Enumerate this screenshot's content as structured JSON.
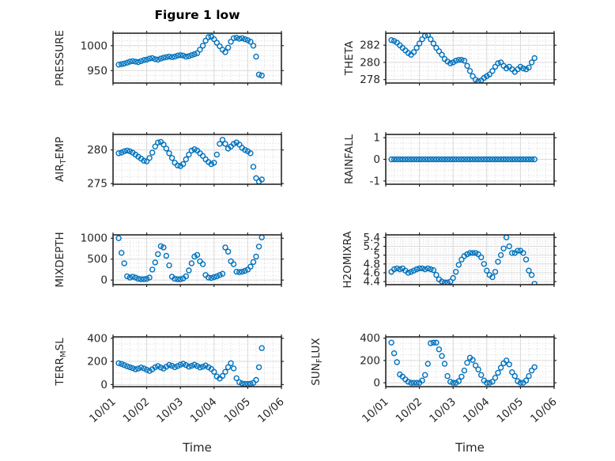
{
  "figure": {
    "title": "Figure 1 low",
    "xlabel": "Time",
    "marker_color": "#0072BD",
    "axis_color": "#262626",
    "grid_major_color": "#d9d9d9",
    "grid_minor_color": "#c9c9c9",
    "background": "#ffffff"
  },
  "chart_data": {
    "type": "scatter",
    "xlabel": "Time",
    "xlim_days": [
      0,
      5
    ],
    "xtick_labels": [
      "10/01",
      "10/02",
      "10/03",
      "10/04",
      "10/05",
      "10/06"
    ],
    "x_days": [
      0.167,
      0.25,
      0.333,
      0.417,
      0.5,
      0.583,
      0.667,
      0.75,
      0.833,
      0.917,
      1.0,
      1.083,
      1.167,
      1.25,
      1.333,
      1.417,
      1.5,
      1.583,
      1.667,
      1.75,
      1.833,
      1.917,
      2.0,
      2.083,
      2.167,
      2.25,
      2.333,
      2.417,
      2.5,
      2.583,
      2.667,
      2.75,
      2.833,
      2.917,
      3.0,
      3.083,
      3.167,
      3.25,
      3.333,
      3.417,
      3.5,
      3.583,
      3.667,
      3.75,
      3.833,
      3.917,
      4.0,
      4.083,
      4.167,
      4.25,
      4.333,
      4.417
    ],
    "subplots": [
      {
        "name": "PRESSURE",
        "row": 0,
        "col": 0,
        "ylabel_parts": [
          {
            "text": "PRESSURE"
          }
        ],
        "yticks": [
          950,
          1000
        ],
        "ytick_labels": [
          "950",
          "1000"
        ],
        "ylim": [
          925,
          1025
        ],
        "yminor": 10,
        "values": [
          962,
          963,
          964,
          966,
          968,
          969,
          968,
          967,
          969,
          971,
          972,
          974,
          975,
          973,
          972,
          974,
          976,
          977,
          978,
          977,
          978,
          980,
          981,
          980,
          978,
          979,
          981,
          983,
          985,
          992,
          1000,
          1010,
          1017,
          1018,
          1013,
          1006,
          999,
          992,
          987,
          996,
          1008,
          1015,
          1016,
          1014,
          1015,
          1013,
          1011,
          1008,
          1000,
          978,
          942,
          940
        ]
      },
      {
        "name": "THETA",
        "row": 0,
        "col": 1,
        "ylabel_parts": [
          {
            "text": "THETA"
          }
        ],
        "yticks": [
          278,
          280,
          282
        ],
        "ytick_labels": [
          "278",
          "280",
          "282"
        ],
        "ylim": [
          277.6,
          283.4
        ],
        "yminor": 0.5,
        "values": [
          282.6,
          282.5,
          282.3,
          282.0,
          281.7,
          281.4,
          281.1,
          280.9,
          281.2,
          281.7,
          282.2,
          282.7,
          283.1,
          283.2,
          282.7,
          282.2,
          281.7,
          281.3,
          280.9,
          280.4,
          280.1,
          279.9,
          280.0,
          280.2,
          280.3,
          280.3,
          280.2,
          279.6,
          279.0,
          278.4,
          278.0,
          277.8,
          277.9,
          278.2,
          278.4,
          278.6,
          279.0,
          279.5,
          279.9,
          280.0,
          279.6,
          279.3,
          279.5,
          279.2,
          278.9,
          279.2,
          279.5,
          279.3,
          279.2,
          279.4,
          280.0,
          280.5
        ]
      },
      {
        "name": "AIR_TEMP",
        "row": 1,
        "col": 0,
        "ylabel_parts": [
          {
            "text": "AIR"
          },
          {
            "text": "T",
            "sub": true
          },
          {
            "text": "EMP"
          }
        ],
        "yticks": [
          275,
          280
        ],
        "ytick_labels": [
          "275",
          "280"
        ],
        "ylim": [
          274.9,
          282.3
        ],
        "yminor": 1,
        "values": [
          279.5,
          279.6,
          279.8,
          279.9,
          279.8,
          279.6,
          279.3,
          279.0,
          278.7,
          278.4,
          278.3,
          278.8,
          279.6,
          280.5,
          281.1,
          281.2,
          280.8,
          280.2,
          279.5,
          278.8,
          278.1,
          277.7,
          277.6,
          277.9,
          278.6,
          279.3,
          279.9,
          280.1,
          279.9,
          279.5,
          279.1,
          278.6,
          278.2,
          277.9,
          278.1,
          279.3,
          280.9,
          281.5,
          280.9,
          280.2,
          280.5,
          280.9,
          281.1,
          280.8,
          280.3,
          280.0,
          279.8,
          279.5,
          277.5,
          275.8,
          275.3,
          275.6
        ]
      },
      {
        "name": "RAINFALL",
        "row": 1,
        "col": 1,
        "ylabel_parts": [
          {
            "text": "RAINFALL"
          }
        ],
        "yticks": [
          -1,
          0,
          1
        ],
        "ytick_labels": [
          "-1",
          "0",
          "1"
        ],
        "ylim": [
          -1.15,
          1.15
        ],
        "yminor": 0.25,
        "values": [
          0,
          0,
          0,
          0,
          0,
          0,
          0,
          0,
          0,
          0,
          0,
          0,
          0,
          0,
          0,
          0,
          0,
          0,
          0,
          0,
          0,
          0,
          0,
          0,
          0,
          0,
          0,
          0,
          0,
          0,
          0,
          0,
          0,
          0,
          0,
          0,
          0,
          0,
          0,
          0,
          0,
          0,
          0,
          0,
          0,
          0,
          0,
          0,
          0,
          0,
          0,
          0
        ]
      },
      {
        "name": "MIXDEPTH",
        "row": 2,
        "col": 0,
        "ylabel_parts": [
          {
            "text": "MIXDEPTH"
          }
        ],
        "yticks": [
          0,
          500,
          1000
        ],
        "ytick_labels": [
          "0",
          "500",
          "1000"
        ],
        "ylim": [
          -110,
          1080
        ],
        "yminor": 100,
        "values": [
          1000,
          650,
          400,
          90,
          60,
          80,
          60,
          30,
          20,
          20,
          30,
          60,
          250,
          420,
          620,
          810,
          780,
          580,
          350,
          80,
          30,
          20,
          20,
          40,
          90,
          230,
          400,
          560,
          600,
          450,
          380,
          120,
          60,
          50,
          70,
          90,
          120,
          150,
          780,
          680,
          450,
          380,
          200,
          190,
          200,
          220,
          250,
          320,
          430,
          560,
          800,
          1020
        ]
      },
      {
        "name": "H2OMIXRA",
        "row": 2,
        "col": 1,
        "ylabel_parts": [
          {
            "text": "H2OMIXRA"
          }
        ],
        "yticks": [
          4.4,
          4.6,
          4.8,
          5,
          5.2,
          5.4
        ],
        "ytick_labels": [
          "4.4",
          "4.6",
          "4.8",
          "5",
          "5.2",
          "5.4"
        ],
        "ylim": [
          4.33,
          5.46
        ],
        "yminor": 0.05,
        "values": [
          4.62,
          4.68,
          4.7,
          4.68,
          4.7,
          4.65,
          4.6,
          4.62,
          4.65,
          4.68,
          4.7,
          4.7,
          4.68,
          4.7,
          4.68,
          4.66,
          4.55,
          4.45,
          4.4,
          4.38,
          4.38,
          4.4,
          4.48,
          4.62,
          4.78,
          4.9,
          4.98,
          5.02,
          5.05,
          5.05,
          5.05,
          5.02,
          4.95,
          4.8,
          4.65,
          4.55,
          4.5,
          4.62,
          4.85,
          5.0,
          5.15,
          5.4,
          5.2,
          5.05,
          5.05,
          5.1,
          5.1,
          5.05,
          4.9,
          4.65,
          4.55,
          4.35
        ]
      },
      {
        "name": "TERR_MSL",
        "row": 3,
        "col": 0,
        "ylabel_parts": [
          {
            "text": "TERR"
          },
          {
            "text": "M",
            "sub": true
          },
          {
            "text": "SL"
          }
        ],
        "yticks": [
          0,
          200,
          400
        ],
        "ytick_labels": [
          "0",
          "200",
          "400"
        ],
        "ylim": [
          -18,
          412
        ],
        "yminor": 50,
        "values": [
          185,
          178,
          168,
          158,
          150,
          142,
          132,
          138,
          148,
          140,
          128,
          118,
          132,
          150,
          160,
          148,
          138,
          155,
          170,
          162,
          150,
          160,
          172,
          180,
          168,
          155,
          162,
          172,
          160,
          148,
          155,
          165,
          150,
          135,
          110,
          70,
          52,
          75,
          110,
          150,
          185,
          140,
          55,
          20,
          10,
          6,
          5,
          8,
          15,
          40,
          150,
          315
        ]
      },
      {
        "name": "SUN_FLUX",
        "row": 3,
        "col": 1,
        "ylabel_parts": [
          {
            "text": "SUN"
          },
          {
            "text": "F",
            "sub": true
          },
          {
            "text": "LUX"
          }
        ],
        "yticks": [
          0,
          200,
          400
        ],
        "ytick_labels": [
          "0",
          "200",
          "400"
        ],
        "ylim": [
          -35,
          412
        ],
        "yminor": 50,
        "values": [
          360,
          265,
          185,
          75,
          55,
          30,
          10,
          0,
          0,
          0,
          0,
          20,
          70,
          170,
          355,
          360,
          360,
          300,
          240,
          170,
          60,
          10,
          0,
          0,
          15,
          55,
          110,
          180,
          225,
          205,
          155,
          120,
          70,
          20,
          0,
          0,
          10,
          45,
          90,
          135,
          175,
          200,
          165,
          95,
          60,
          15,
          0,
          0,
          20,
          60,
          110,
          140
        ]
      }
    ]
  }
}
